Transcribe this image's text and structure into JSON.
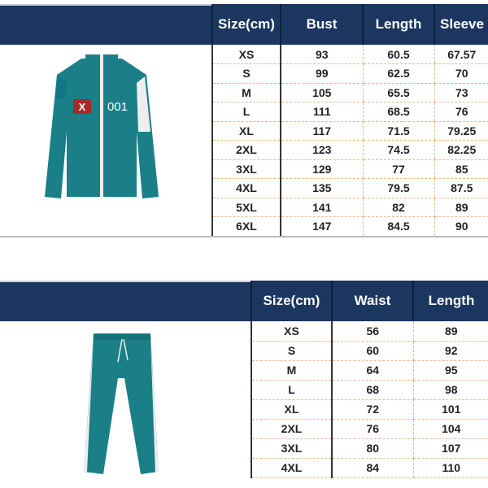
{
  "jacket_table": {
    "headers": [
      "Size(cm)",
      "Bust",
      "Length",
      "Sleeve"
    ],
    "rows": [
      [
        "XS",
        "93",
        "60.5",
        "67.57"
      ],
      [
        "S",
        "99",
        "62.5",
        "70"
      ],
      [
        "M",
        "105",
        "65.5",
        "73"
      ],
      [
        "L",
        "111",
        "68.5",
        "76"
      ],
      [
        "XL",
        "117",
        "71.5",
        "79.25"
      ],
      [
        "2XL",
        "123",
        "74.5",
        "82.25"
      ],
      [
        "3XL",
        "129",
        "77",
        "85"
      ],
      [
        "4XL",
        "135",
        "79.5",
        "87.5"
      ],
      [
        "5XL",
        "141",
        "82",
        "89"
      ],
      [
        "6XL",
        "147",
        "84.5",
        "90"
      ]
    ]
  },
  "jacket_image": {
    "badge_x": "X",
    "number": "001"
  },
  "pants_table": {
    "headers": [
      "Size(cm)",
      "Waist",
      "Length"
    ],
    "rows": [
      [
        "XS",
        "56",
        "89"
      ],
      [
        "S",
        "60",
        "92"
      ],
      [
        "M",
        "64",
        "95"
      ],
      [
        "L",
        "68",
        "98"
      ],
      [
        "XL",
        "72",
        "101"
      ],
      [
        "2XL",
        "76",
        "104"
      ],
      [
        "3XL",
        "80",
        "107"
      ],
      [
        "4XL",
        "84",
        "110"
      ]
    ]
  },
  "colors": {
    "header": "#1b365f",
    "garment": "#1a7f86"
  }
}
